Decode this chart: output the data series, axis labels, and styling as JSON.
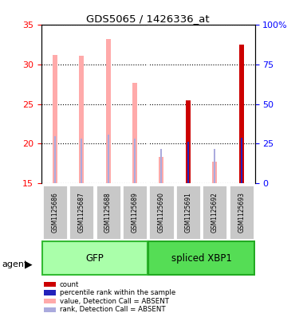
{
  "title": "GDS5065 / 1426336_at",
  "samples": [
    "GSM1125686",
    "GSM1125687",
    "GSM1125688",
    "GSM1125689",
    "GSM1125690",
    "GSM1125691",
    "GSM1125692",
    "GSM1125693"
  ],
  "value_absent": [
    31.2,
    31.1,
    33.2,
    27.7,
    18.3,
    null,
    17.7,
    null
  ],
  "rank_absent": [
    20.9,
    20.6,
    21.1,
    20.6,
    19.3,
    null,
    19.3,
    null
  ],
  "count_present": [
    null,
    null,
    null,
    null,
    null,
    25.5,
    null,
    32.5
  ],
  "rank_present": [
    null,
    null,
    null,
    null,
    null,
    20.2,
    null,
    20.7
  ],
  "ylim": [
    15,
    35
  ],
  "yticks_left": [
    15,
    20,
    25,
    30,
    35
  ],
  "right_tick_vals": [
    15,
    20,
    25,
    30,
    35
  ],
  "right_tick_labels": [
    "0",
    "25",
    "50",
    "75",
    "100%"
  ],
  "color_count": "#cc0000",
  "color_rank_present": "#2222bb",
  "color_value_absent": "#ffaaaa",
  "color_rank_absent": "#aaaadd",
  "color_sample_box": "#c8c8c8",
  "color_gfp": "#aaffaa",
  "color_gfp_border": "#33bb33",
  "color_xbp1": "#55dd55",
  "color_xbp1_border": "#22aa22",
  "legend_items": [
    {
      "label": "count",
      "color": "#cc0000"
    },
    {
      "label": "percentile rank within the sample",
      "color": "#2222bb"
    },
    {
      "label": "value, Detection Call = ABSENT",
      "color": "#ffaaaa"
    },
    {
      "label": "rank, Detection Call = ABSENT",
      "color": "#aaaadd"
    }
  ]
}
